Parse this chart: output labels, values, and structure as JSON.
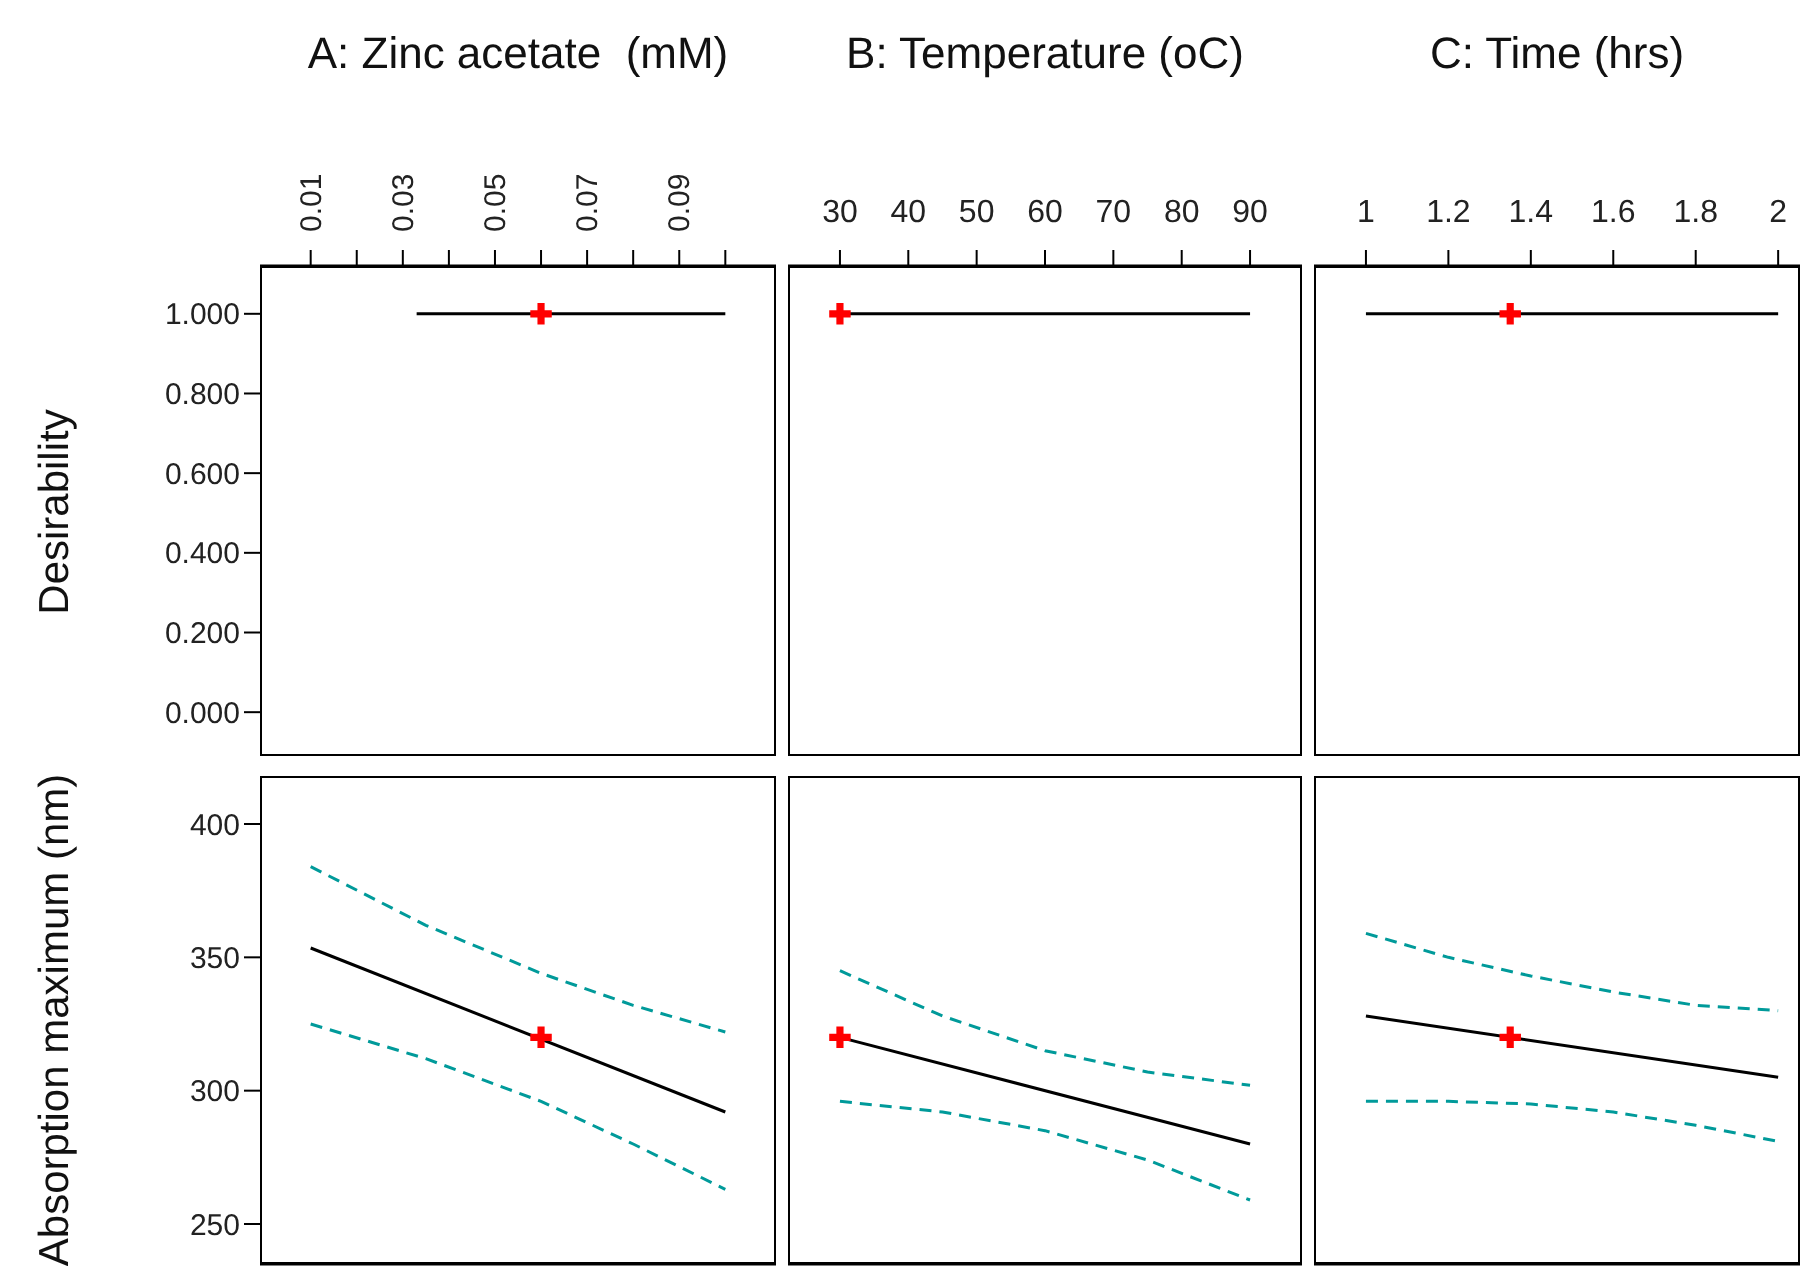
{
  "chart_data": [
    {
      "type": "line",
      "title": "A: Zinc acetate  (mM)",
      "ylabel": "Desirability",
      "xlim": [
        -0.001,
        0.111
      ],
      "xticks": [
        0.01,
        {
          "value": 0.02,
          "label": null
        },
        0.03,
        {
          "value": 0.04,
          "label": null
        },
        0.05,
        {
          "value": 0.06,
          "label": null
        },
        0.07,
        {
          "value": 0.08,
          "label": null
        },
        0.09,
        {
          "value": 0.1,
          "label": null
        }
      ],
      "ylim": [
        -0.11,
        1.12
      ],
      "yticks": [
        {
          "value": 0,
          "label": "0.000"
        },
        {
          "value": 0.2,
          "label": "0.200"
        },
        {
          "value": 0.4,
          "label": "0.400"
        },
        {
          "value": 0.6,
          "label": "0.600"
        },
        {
          "value": 0.8,
          "label": "0.800"
        },
        {
          "value": 1,
          "label": "1.000"
        }
      ],
      "series": [
        {
          "type": "line",
          "color": "#000000",
          "line_style": "solid",
          "marker": "none",
          "x": [
            0.033,
            0.1
          ],
          "values": [
            1,
            1
          ]
        },
        {
          "type": "scatter",
          "color": "#ff0000",
          "marker": "cross",
          "x": [
            0.06
          ],
          "values": [
            1
          ]
        }
      ]
    },
    {
      "type": "line",
      "title": "B: Temperature (oC)",
      "xlim": [
        22.4,
        97.6
      ],
      "xticks": [
        30,
        40,
        50,
        60,
        70,
        80,
        90
      ],
      "ylim": [
        -0.11,
        1.12
      ],
      "tick_labels": "x",
      "series": [
        {
          "type": "line",
          "color": "#000000",
          "line_style": "solid",
          "marker": "none",
          "x": [
            30,
            90
          ],
          "values": [
            1,
            1
          ]
        },
        {
          "type": "scatter",
          "color": "#ff0000",
          "marker": "cross",
          "x": [
            30
          ],
          "values": [
            1
          ]
        }
      ]
    },
    {
      "type": "line",
      "title": "C: Time (hrs)",
      "xlim": [
        0.874,
        2.053
      ],
      "xticks": [
        1,
        1.2,
        1.4,
        1.6,
        1.8,
        2
      ],
      "ylim": [
        -0.11,
        1.12
      ],
      "tick_labels": "x",
      "series": [
        {
          "type": "line",
          "color": "#000000",
          "line_style": "solid",
          "marker": "none",
          "x": [
            1,
            2
          ],
          "values": [
            1,
            1
          ]
        },
        {
          "type": "scatter",
          "color": "#ff0000",
          "marker": "cross",
          "x": [
            1.35
          ],
          "values": [
            1
          ]
        }
      ]
    },
    {
      "type": "line",
      "ylabel": "Absorption maximum (nm)",
      "xlim": [
        -0.001,
        0.111
      ],
      "ylim": [
        235,
        418
      ],
      "yticks": [
        250,
        300,
        350,
        400
      ],
      "tick_labels": "y",
      "series": [
        {
          "type": "line",
          "color": "#000000",
          "line_style": "solid",
          "marker": "none",
          "x": [
            0.01,
            0.1
          ],
          "values": [
            353.5,
            292
          ]
        },
        {
          "type": "line",
          "color": "#009a9a",
          "line_style": "dashed",
          "marker": "none",
          "x": [
            0.01,
            0.035,
            0.06,
            0.08,
            0.1
          ],
          "values": [
            384,
            362,
            344,
            332,
            322
          ]
        },
        {
          "type": "line",
          "color": "#009a9a",
          "line_style": "dashed",
          "marker": "none",
          "x": [
            0.01,
            0.035,
            0.06,
            0.08,
            0.1
          ],
          "values": [
            325,
            312,
            296,
            280,
            263
          ]
        },
        {
          "type": "scatter",
          "color": "#ff0000",
          "marker": "cross",
          "x": [
            0.06
          ],
          "values": [
            320
          ]
        }
      ]
    },
    {
      "type": "line",
      "xlim": [
        22.4,
        97.6
      ],
      "ylim": [
        235,
        418
      ],
      "tick_labels": false,
      "series": [
        {
          "type": "line",
          "color": "#000000",
          "line_style": "solid",
          "marker": "none",
          "x": [
            30,
            90
          ],
          "values": [
            320,
            280
          ]
        },
        {
          "type": "line",
          "color": "#009a9a",
          "line_style": "dashed",
          "marker": "none",
          "x": [
            30,
            45,
            60,
            75,
            90
          ],
          "values": [
            345,
            328,
            315,
            307,
            302
          ]
        },
        {
          "type": "line",
          "color": "#009a9a",
          "line_style": "dashed",
          "marker": "none",
          "x": [
            30,
            45,
            60,
            75,
            90
          ],
          "values": [
            296,
            292,
            285,
            274,
            259
          ]
        },
        {
          "type": "scatter",
          "color": "#ff0000",
          "marker": "cross",
          "x": [
            30
          ],
          "values": [
            320
          ]
        }
      ]
    },
    {
      "type": "line",
      "xlim": [
        0.874,
        2.053
      ],
      "ylim": [
        235,
        418
      ],
      "tick_labels": false,
      "series": [
        {
          "type": "line",
          "color": "#000000",
          "line_style": "solid",
          "marker": "none",
          "x": [
            1,
            2
          ],
          "values": [
            328,
            305
          ]
        },
        {
          "type": "line",
          "color": "#009a9a",
          "line_style": "dashed",
          "marker": "none",
          "x": [
            1,
            1.2,
            1.4,
            1.6,
            1.8,
            2
          ],
          "values": [
            359,
            350,
            343,
            337,
            332,
            330
          ]
        },
        {
          "type": "line",
          "color": "#009a9a",
          "line_style": "dashed",
          "marker": "none",
          "x": [
            1,
            1.2,
            1.4,
            1.6,
            1.8,
            2
          ],
          "values": [
            296,
            296,
            295,
            292,
            287,
            281
          ]
        },
        {
          "type": "scatter",
          "color": "#ff0000",
          "marker": "cross",
          "x": [
            1.35
          ],
          "values": [
            320
          ]
        }
      ]
    }
  ]
}
